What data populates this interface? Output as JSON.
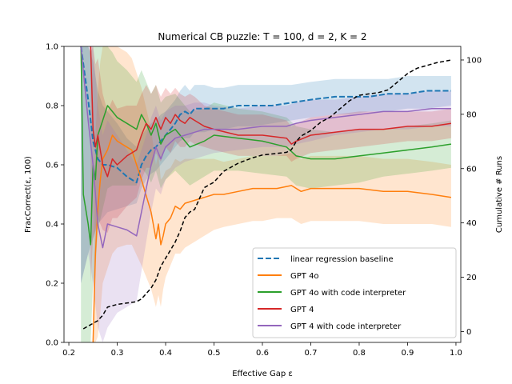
{
  "chart_data": {
    "type": "line",
    "title": "Numerical CB puzzle: T = 100, d = 2, K = 2",
    "xlabel": "Effective Gap ε",
    "ylabel": "FracCorrect(ε, 100)",
    "y2label": "Cumulative # Runs",
    "xlim": [
      0.19,
      1.01
    ],
    "ylim": [
      0.0,
      1.0
    ],
    "y2lim": [
      -4,
      105
    ],
    "x_ticks": [
      "0.2",
      "0.3",
      "0.4",
      "0.5",
      "0.6",
      "0.7",
      "0.8",
      "0.9",
      "1.0"
    ],
    "y_ticks": [
      "0.0",
      "0.2",
      "0.4",
      "0.6",
      "0.8",
      "1.0"
    ],
    "y2_ticks": [
      "0",
      "20",
      "40",
      "60",
      "80",
      "100"
    ],
    "legend_position": "lower-right",
    "grid": false,
    "series": [
      {
        "name": "linear regression baseline",
        "color": "#1f77b4",
        "dash": "dashed",
        "x": [
          0.225,
          0.24,
          0.25,
          0.26,
          0.27,
          0.28,
          0.3,
          0.32,
          0.34,
          0.35,
          0.36,
          0.37,
          0.38,
          0.39,
          0.4,
          0.41,
          0.42,
          0.43,
          0.44,
          0.45,
          0.46,
          0.48,
          0.5,
          0.52,
          0.55,
          0.58,
          0.62,
          0.66,
          0.7,
          0.75,
          0.78,
          0.82,
          0.86,
          0.9,
          0.94,
          0.99
        ],
        "values": [
          1.0,
          0.82,
          0.68,
          0.62,
          0.6,
          0.6,
          0.59,
          0.56,
          0.54,
          0.6,
          0.63,
          0.65,
          0.66,
          0.68,
          0.7,
          0.72,
          0.74,
          0.77,
          0.78,
          0.77,
          0.79,
          0.79,
          0.79,
          0.79,
          0.8,
          0.8,
          0.8,
          0.81,
          0.82,
          0.83,
          0.83,
          0.83,
          0.84,
          0.84,
          0.85,
          0.85
        ],
        "band_lower": [
          0.2,
          0.3,
          0.35,
          0.4,
          0.42,
          0.44,
          0.45,
          0.46,
          0.47,
          0.52,
          0.55,
          0.57,
          0.58,
          0.6,
          0.62,
          0.64,
          0.66,
          0.68,
          0.69,
          0.69,
          0.71,
          0.71,
          0.72,
          0.72,
          0.73,
          0.73,
          0.74,
          0.75,
          0.76,
          0.77,
          0.77,
          0.78,
          0.78,
          0.79,
          0.79,
          0.8
        ],
        "band_upper": [
          1.0,
          1.0,
          0.95,
          0.85,
          0.8,
          0.78,
          0.74,
          0.69,
          0.66,
          0.7,
          0.72,
          0.74,
          0.75,
          0.77,
          0.78,
          0.8,
          0.82,
          0.85,
          0.87,
          0.85,
          0.87,
          0.87,
          0.86,
          0.86,
          0.87,
          0.87,
          0.87,
          0.87,
          0.88,
          0.89,
          0.89,
          0.89,
          0.89,
          0.9,
          0.9,
          0.9
        ]
      },
      {
        "name": "GPT 4o",
        "color": "#ff7f0e",
        "dash": "solid",
        "x": [
          0.25,
          0.255,
          0.26,
          0.265,
          0.27,
          0.28,
          0.29,
          0.3,
          0.32,
          0.33,
          0.35,
          0.37,
          0.38,
          0.385,
          0.39,
          0.395,
          0.4,
          0.41,
          0.42,
          0.43,
          0.44,
          0.46,
          0.48,
          0.5,
          0.52,
          0.55,
          0.58,
          0.6,
          0.63,
          0.66,
          0.68,
          0.7,
          0.75,
          0.8,
          0.85,
          0.9,
          0.95,
          0.99
        ],
        "values": [
          0.0,
          0.3,
          0.45,
          0.55,
          0.62,
          0.65,
          0.7,
          0.68,
          0.66,
          0.65,
          0.55,
          0.44,
          0.35,
          0.4,
          0.33,
          0.36,
          0.4,
          0.42,
          0.46,
          0.45,
          0.47,
          0.48,
          0.49,
          0.5,
          0.5,
          0.51,
          0.52,
          0.52,
          0.52,
          0.53,
          0.51,
          0.52,
          0.52,
          0.52,
          0.51,
          0.51,
          0.5,
          0.49
        ],
        "band_lower": [
          0.0,
          0.0,
          0.02,
          0.1,
          0.2,
          0.25,
          0.3,
          0.32,
          0.33,
          0.33,
          0.26,
          0.18,
          0.12,
          0.16,
          0.12,
          0.18,
          0.22,
          0.26,
          0.3,
          0.3,
          0.32,
          0.34,
          0.36,
          0.38,
          0.39,
          0.4,
          0.41,
          0.41,
          0.42,
          0.42,
          0.4,
          0.41,
          0.41,
          0.41,
          0.4,
          0.4,
          0.4,
          0.39
        ],
        "band_upper": [
          0.0,
          0.7,
          0.85,
          0.95,
          1.0,
          1.0,
          1.0,
          1.0,
          0.98,
          0.96,
          0.86,
          0.72,
          0.6,
          0.64,
          0.55,
          0.56,
          0.58,
          0.59,
          0.62,
          0.61,
          0.62,
          0.62,
          0.62,
          0.62,
          0.61,
          0.62,
          0.63,
          0.63,
          0.63,
          0.64,
          0.62,
          0.63,
          0.63,
          0.63,
          0.62,
          0.62,
          0.61,
          0.6
        ]
      },
      {
        "name": "GPT 4o with code interpreter",
        "color": "#2ca02c",
        "dash": "solid",
        "x": [
          0.225,
          0.23,
          0.24,
          0.245,
          0.25,
          0.255,
          0.26,
          0.27,
          0.28,
          0.29,
          0.3,
          0.32,
          0.34,
          0.35,
          0.36,
          0.37,
          0.38,
          0.39,
          0.4,
          0.42,
          0.45,
          0.48,
          0.5,
          0.55,
          0.6,
          0.65,
          0.67,
          0.7,
          0.75,
          0.8,
          0.85,
          0.9,
          0.95,
          0.99
        ],
        "values": [
          1.0,
          0.5,
          0.4,
          0.33,
          0.6,
          0.55,
          0.7,
          0.75,
          0.8,
          0.78,
          0.76,
          0.74,
          0.72,
          0.77,
          0.74,
          0.7,
          0.74,
          0.67,
          0.7,
          0.72,
          0.66,
          0.68,
          0.7,
          0.69,
          0.68,
          0.66,
          0.63,
          0.62,
          0.62,
          0.63,
          0.64,
          0.65,
          0.66,
          0.67
        ],
        "band_lower": [
          0.0,
          0.0,
          0.0,
          0.0,
          0.2,
          0.25,
          0.38,
          0.45,
          0.52,
          0.53,
          0.53,
          0.53,
          0.53,
          0.59,
          0.57,
          0.54,
          0.58,
          0.52,
          0.55,
          0.58,
          0.53,
          0.56,
          0.58,
          0.58,
          0.57,
          0.56,
          0.53,
          0.52,
          0.53,
          0.54,
          0.56,
          0.57,
          0.58,
          0.59
        ],
        "band_upper": [
          1.0,
          1.0,
          1.0,
          0.98,
          1.0,
          1.0,
          1.0,
          1.0,
          1.0,
          0.98,
          0.95,
          0.92,
          0.88,
          0.92,
          0.88,
          0.84,
          0.87,
          0.81,
          0.83,
          0.84,
          0.78,
          0.79,
          0.81,
          0.79,
          0.78,
          0.76,
          0.73,
          0.72,
          0.71,
          0.72,
          0.72,
          0.73,
          0.74,
          0.75
        ]
      },
      {
        "name": "GPT 4",
        "color": "#d62728",
        "dash": "solid",
        "x": [
          0.245,
          0.25,
          0.255,
          0.26,
          0.27,
          0.28,
          0.29,
          0.3,
          0.32,
          0.34,
          0.35,
          0.36,
          0.37,
          0.38,
          0.39,
          0.4,
          0.41,
          0.42,
          0.43,
          0.44,
          0.45,
          0.46,
          0.48,
          0.5,
          0.55,
          0.6,
          0.65,
          0.66,
          0.67,
          0.7,
          0.75,
          0.8,
          0.85,
          0.9,
          0.95,
          0.99
        ],
        "values": [
          1.0,
          0.72,
          0.66,
          0.7,
          0.6,
          0.56,
          0.62,
          0.6,
          0.63,
          0.65,
          0.7,
          0.74,
          0.72,
          0.76,
          0.72,
          0.76,
          0.74,
          0.77,
          0.75,
          0.74,
          0.76,
          0.75,
          0.73,
          0.72,
          0.7,
          0.7,
          0.69,
          0.67,
          0.68,
          0.7,
          0.71,
          0.72,
          0.72,
          0.73,
          0.73,
          0.74
        ],
        "band_lower": [
          0.2,
          0.35,
          0.38,
          0.42,
          0.38,
          0.37,
          0.42,
          0.42,
          0.46,
          0.49,
          0.55,
          0.59,
          0.59,
          0.64,
          0.61,
          0.66,
          0.64,
          0.68,
          0.66,
          0.66,
          0.68,
          0.67,
          0.66,
          0.65,
          0.63,
          0.63,
          0.63,
          0.61,
          0.62,
          0.64,
          0.65,
          0.66,
          0.67,
          0.68,
          0.68,
          0.69
        ],
        "band_upper": [
          1.0,
          1.0,
          0.94,
          0.96,
          0.84,
          0.78,
          0.82,
          0.79,
          0.8,
          0.8,
          0.84,
          0.87,
          0.84,
          0.87,
          0.83,
          0.86,
          0.84,
          0.86,
          0.84,
          0.83,
          0.84,
          0.83,
          0.8,
          0.79,
          0.77,
          0.77,
          0.75,
          0.73,
          0.74,
          0.76,
          0.77,
          0.78,
          0.78,
          0.78,
          0.78,
          0.79
        ]
      },
      {
        "name": "GPT 4 with code interpreter",
        "color": "#9467bd",
        "dash": "solid",
        "x": [
          0.225,
          0.24,
          0.25,
          0.26,
          0.27,
          0.28,
          0.3,
          0.32,
          0.34,
          0.35,
          0.36,
          0.37,
          0.38,
          0.39,
          0.4,
          0.42,
          0.44,
          0.46,
          0.48,
          0.5,
          0.55,
          0.6,
          0.65,
          0.67,
          0.7,
          0.75,
          0.8,
          0.85,
          0.9,
          0.95,
          0.99
        ],
        "values": [
          1.0,
          0.75,
          0.6,
          0.4,
          0.32,
          0.4,
          0.39,
          0.38,
          0.36,
          0.44,
          0.52,
          0.6,
          0.66,
          0.62,
          0.66,
          0.69,
          0.7,
          0.71,
          0.72,
          0.72,
          0.72,
          0.73,
          0.73,
          0.74,
          0.75,
          0.76,
          0.77,
          0.78,
          0.78,
          0.79,
          0.79
        ],
        "band_lower": [
          0.2,
          0.3,
          0.2,
          0.05,
          0.0,
          0.05,
          0.1,
          0.12,
          0.14,
          0.24,
          0.34,
          0.44,
          0.52,
          0.5,
          0.55,
          0.59,
          0.61,
          0.62,
          0.63,
          0.64,
          0.65,
          0.66,
          0.66,
          0.67,
          0.68,
          0.7,
          0.71,
          0.72,
          0.72,
          0.73,
          0.73
        ],
        "band_upper": [
          1.0,
          1.0,
          1.0,
          0.8,
          0.7,
          0.75,
          0.7,
          0.65,
          0.6,
          0.65,
          0.7,
          0.76,
          0.8,
          0.75,
          0.78,
          0.8,
          0.8,
          0.81,
          0.81,
          0.8,
          0.79,
          0.8,
          0.8,
          0.81,
          0.82,
          0.82,
          0.83,
          0.84,
          0.84,
          0.85,
          0.85
        ]
      }
    ],
    "cumulative_runs": {
      "color": "#000000",
      "dash": "dashed",
      "axis": "right",
      "x": [
        0.23,
        0.24,
        0.25,
        0.26,
        0.27,
        0.28,
        0.3,
        0.32,
        0.34,
        0.35,
        0.36,
        0.37,
        0.38,
        0.39,
        0.4,
        0.41,
        0.42,
        0.43,
        0.44,
        0.45,
        0.46,
        0.47,
        0.48,
        0.5,
        0.52,
        0.55,
        0.58,
        0.6,
        0.65,
        0.66,
        0.67,
        0.68,
        0.7,
        0.72,
        0.74,
        0.76,
        0.78,
        0.8,
        0.84,
        0.86,
        0.88,
        0.9,
        0.92,
        0.94,
        0.96,
        0.99
      ],
      "values": [
        1,
        2,
        3,
        4,
        6,
        9,
        10,
        10.5,
        11,
        12,
        14,
        16,
        19,
        24,
        27,
        30,
        33,
        37,
        42,
        44,
        45,
        49,
        53,
        55,
        59,
        62,
        64,
        65,
        66,
        67,
        70,
        72,
        74,
        77,
        79,
        82,
        85,
        87,
        88,
        89,
        92,
        95,
        97,
        98,
        99,
        100
      ]
    }
  }
}
